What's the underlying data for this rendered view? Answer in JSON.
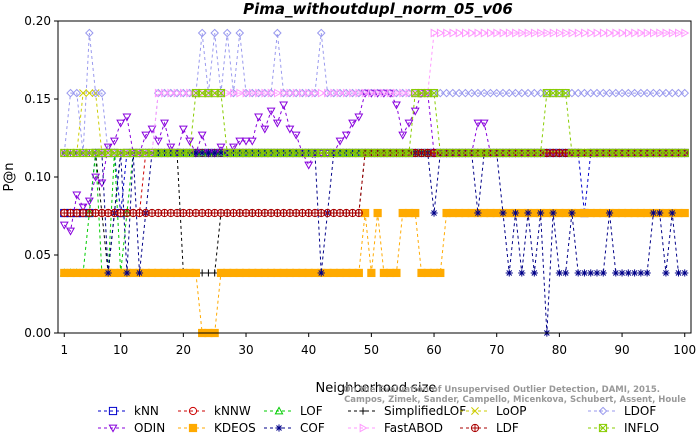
{
  "chart_data": {
    "type": "line",
    "title": "Pima_withoutdupl_norm_05_v06",
    "xlabel": "Neighborhood size",
    "ylabel": "P@n",
    "xlim": [
      0,
      101
    ],
    "ylim": [
      0,
      0.2
    ],
    "xticks": [
      1,
      10,
      20,
      30,
      40,
      50,
      60,
      70,
      80,
      90,
      100
    ],
    "yticks": [
      0.0,
      0.05,
      0.1,
      0.15,
      0.2
    ],
    "ytick_labels": [
      "0.00",
      "0.05",
      "0.10",
      "0.15",
      "0.20"
    ],
    "grid": false,
    "legend_position": "bottom",
    "watermark": {
      "line1": "Campos, Zimek, Sander, Campello, Micenkova, Schubert, Assent, Houle",
      "line2": "On the Evaluation of Unsupervised Outlier Detection, DAMI, 2015."
    },
    "series": [
      {
        "name": "kNN",
        "color": "#0000cc",
        "marker": "square",
        "segments": [
          [
            1,
            0.0769
          ],
          [
            2,
            0.0769
          ],
          [
            5,
            0.0769
          ],
          [
            6,
            0.1154
          ],
          [
            9,
            0.1154
          ],
          [
            10,
            0.0769
          ],
          [
            11,
            0.1154
          ],
          [
            83,
            0.1154
          ],
          [
            84,
            0.0769
          ],
          [
            85,
            0.1154
          ],
          [
            100,
            0.1154
          ]
        ]
      },
      {
        "name": "kNNW",
        "color": "#cc0000",
        "marker": "circle",
        "segments": [
          [
            1,
            0.0769
          ],
          [
            13,
            0.0769
          ],
          [
            14,
            0.1154
          ],
          [
            100,
            0.1154
          ]
        ]
      },
      {
        "name": "LOF",
        "color": "#00cc00",
        "marker": "triangle-up",
        "segments": [
          [
            1,
            0.0385
          ],
          [
            4,
            0.0385
          ],
          [
            5,
            0.0769
          ],
          [
            6,
            0.1154
          ],
          [
            7,
            0.0385
          ],
          [
            8,
            0.0385
          ],
          [
            9,
            0.1154
          ],
          [
            10,
            0.0385
          ],
          [
            11,
            0.0769
          ],
          [
            12,
            0.1154
          ],
          [
            100,
            0.1154
          ]
        ]
      },
      {
        "name": "SimplifiedLOF",
        "color": "#000000",
        "marker": "plus",
        "segments": [
          [
            1,
            0.1154
          ],
          [
            6,
            0.1154
          ],
          [
            7,
            0.0769
          ],
          [
            8,
            0.0385
          ],
          [
            9,
            0.0769
          ],
          [
            10,
            0.1154
          ],
          [
            19,
            0.1154
          ],
          [
            20,
            0.0385
          ],
          [
            25,
            0.0385
          ],
          [
            26,
            0.0769
          ],
          [
            47,
            0.0769
          ],
          [
            48,
            0.0769
          ],
          [
            49,
            0.1154
          ],
          [
            100,
            0.1154
          ]
        ]
      },
      {
        "name": "LoOP",
        "color": "#cccc00",
        "marker": "x",
        "segments": [
          [
            1,
            0.1154
          ],
          [
            3,
            0.1154
          ],
          [
            4,
            0.1538
          ],
          [
            6,
            0.1538
          ],
          [
            7,
            0.1154
          ],
          [
            100,
            0.1154
          ]
        ]
      },
      {
        "name": "LDOF",
        "color": "#9999ee",
        "marker": "diamond",
        "segments": [
          [
            1,
            0.1154
          ],
          [
            2,
            0.1538
          ],
          [
            3,
            0.1538
          ],
          [
            4,
            0.1154
          ],
          [
            5,
            0.1923
          ],
          [
            6,
            0.1538
          ],
          [
            7,
            0.1538
          ],
          [
            8,
            0.1154
          ],
          [
            9,
            0.1154
          ],
          [
            10,
            0.1154
          ],
          [
            11,
            0.1154
          ],
          [
            12,
            0.1154
          ],
          [
            13,
            0.1154
          ],
          [
            14,
            0.1154
          ],
          [
            15,
            0.1154
          ],
          [
            16,
            0.1538
          ],
          [
            22,
            0.1538
          ],
          [
            23,
            0.1923
          ],
          [
            24,
            0.1538
          ],
          [
            25,
            0.1923
          ],
          [
            26,
            0.1538
          ],
          [
            27,
            0.1923
          ],
          [
            28,
            0.1538
          ],
          [
            29,
            0.1923
          ],
          [
            30,
            0.1538
          ],
          [
            34,
            0.1538
          ],
          [
            35,
            0.1923
          ],
          [
            36,
            0.1538
          ],
          [
            41,
            0.1538
          ],
          [
            42,
            0.1923
          ],
          [
            43,
            0.1538
          ],
          [
            100,
            0.1538
          ]
        ]
      },
      {
        "name": "ODIN",
        "color": "#8800dd",
        "marker": "triangle-down",
        "segments": [
          [
            1,
            0.0692
          ],
          [
            2,
            0.0654
          ],
          [
            3,
            0.0885
          ],
          [
            4,
            0.0808
          ],
          [
            5,
            0.0846
          ],
          [
            6,
            0.1
          ],
          [
            7,
            0.0962
          ],
          [
            8,
            0.1192
          ],
          [
            9,
            0.1231
          ],
          [
            10,
            0.1346
          ],
          [
            11,
            0.1385
          ],
          [
            12,
            0.1154
          ],
          [
            13,
            0.1154
          ],
          [
            14,
            0.1269
          ],
          [
            15,
            0.1308
          ],
          [
            16,
            0.1231
          ],
          [
            17,
            0.1346
          ],
          [
            18,
            0.1192
          ],
          [
            19,
            0.1154
          ],
          [
            20,
            0.1308
          ],
          [
            21,
            0.1231
          ],
          [
            22,
            0.1154
          ],
          [
            23,
            0.1269
          ],
          [
            24,
            0.1154
          ],
          [
            25,
            0.1154
          ],
          [
            26,
            0.1192
          ],
          [
            27,
            0.1154
          ],
          [
            28,
            0.1192
          ],
          [
            29,
            0.1231
          ],
          [
            30,
            0.1231
          ],
          [
            31,
            0.1231
          ],
          [
            32,
            0.1385
          ],
          [
            33,
            0.1308
          ],
          [
            34,
            0.1423
          ],
          [
            35,
            0.1346
          ],
          [
            36,
            0.1462
          ],
          [
            37,
            0.1308
          ],
          [
            38,
            0.1269
          ],
          [
            39,
            0.1154
          ],
          [
            40,
            0.1077
          ],
          [
            41,
            0.1154
          ],
          [
            42,
            0.1154
          ],
          [
            43,
            0.1154
          ],
          [
            44,
            0.1154
          ],
          [
            45,
            0.1231
          ],
          [
            46,
            0.1269
          ],
          [
            47,
            0.1346
          ],
          [
            48,
            0.1385
          ],
          [
            49,
            0.1538
          ],
          [
            50,
            0.1538
          ],
          [
            51,
            0.1538
          ],
          [
            52,
            0.1538
          ],
          [
            53,
            0.1538
          ],
          [
            54,
            0.1462
          ],
          [
            55,
            0.1269
          ],
          [
            56,
            0.1346
          ],
          [
            57,
            0.1423
          ],
          [
            58,
            0.1538
          ],
          [
            59,
            0.1538
          ],
          [
            60,
            0.1154
          ],
          [
            66,
            0.1154
          ],
          [
            67,
            0.1346
          ],
          [
            68,
            0.1346
          ],
          [
            69,
            0.1154
          ],
          [
            100,
            0.1154
          ]
        ]
      },
      {
        "name": "KDEOS",
        "color": "#ffaa00",
        "marker": "square-filled",
        "segments": [
          [
            1,
            0.0385
          ],
          [
            21,
            0.0385
          ],
          [
            22,
            0.0385
          ],
          [
            23,
            0.0
          ],
          [
            25,
            0.0
          ],
          [
            26,
            0.0385
          ],
          [
            48,
            0.0385
          ],
          [
            49,
            0.0769
          ],
          [
            50,
            0.0385
          ],
          [
            51,
            0.0769
          ],
          [
            52,
            0.0385
          ],
          [
            54,
            0.0385
          ],
          [
            55,
            0.0769
          ],
          [
            57,
            0.0769
          ],
          [
            58,
            0.0385
          ],
          [
            61,
            0.0385
          ],
          [
            62,
            0.0769
          ],
          [
            100,
            0.0769
          ]
        ]
      },
      {
        "name": "COF",
        "color": "#000088",
        "marker": "asterisk",
        "segments": [
          [
            1,
            0.1154
          ],
          [
            7,
            0.1154
          ],
          [
            8,
            0.0385
          ],
          [
            9,
            0.0769
          ],
          [
            10,
            0.1154
          ],
          [
            11,
            0.0385
          ],
          [
            12,
            0.1154
          ],
          [
            13,
            0.0385
          ],
          [
            14,
            0.0769
          ],
          [
            15,
            0.1154
          ],
          [
            41,
            0.1154
          ],
          [
            42,
            0.0385
          ],
          [
            43,
            0.0769
          ],
          [
            44,
            0.1154
          ],
          [
            59,
            0.1154
          ],
          [
            60,
            0.0769
          ],
          [
            61,
            0.1154
          ],
          [
            66,
            0.1154
          ],
          [
            67,
            0.0769
          ],
          [
            68,
            0.1154
          ],
          [
            70,
            0.1154
          ],
          [
            71,
            0.0769
          ],
          [
            72,
            0.0385
          ],
          [
            73,
            0.0769
          ],
          [
            74,
            0.0385
          ],
          [
            75,
            0.0769
          ],
          [
            76,
            0.0385
          ],
          [
            77,
            0.0769
          ],
          [
            78,
            0.0
          ],
          [
            79,
            0.0769
          ],
          [
            80,
            0.0385
          ],
          [
            81,
            0.0385
          ],
          [
            82,
            0.0769
          ],
          [
            83,
            0.0385
          ],
          [
            87,
            0.0385
          ],
          [
            88,
            0.0769
          ],
          [
            89,
            0.0385
          ],
          [
            94,
            0.0385
          ],
          [
            95,
            0.0769
          ],
          [
            96,
            0.0769
          ],
          [
            97,
            0.0385
          ],
          [
            98,
            0.0769
          ],
          [
            99,
            0.0385
          ],
          [
            100,
            0.0385
          ]
        ]
      },
      {
        "name": "FastABOD",
        "color": "#ff99ff",
        "marker": "triangle-right",
        "segments": [
          [
            1,
            0.1154
          ],
          [
            15,
            0.1154
          ],
          [
            16,
            0.1538
          ],
          [
            59,
            0.1538
          ],
          [
            60,
            0.1923
          ],
          [
            100,
            0.1923
          ]
        ]
      },
      {
        "name": "LDF",
        "color": "#aa0000",
        "marker": "circle-plus",
        "segments": [
          [
            1,
            0.0769
          ],
          [
            48,
            0.0769
          ],
          [
            49,
            0.1154
          ],
          [
            100,
            0.1154
          ]
        ]
      },
      {
        "name": "INFLO",
        "color": "#88cc00",
        "marker": "square-x",
        "segments": [
          [
            1,
            0.1154
          ],
          [
            21,
            0.1154
          ],
          [
            22,
            0.1538
          ],
          [
            26,
            0.1538
          ],
          [
            27,
            0.1154
          ],
          [
            56,
            0.1154
          ],
          [
            57,
            0.1538
          ],
          [
            60,
            0.1538
          ],
          [
            61,
            0.1154
          ],
          [
            77,
            0.1154
          ],
          [
            78,
            0.1538
          ],
          [
            81,
            0.1538
          ],
          [
            82,
            0.1154
          ],
          [
            100,
            0.1154
          ]
        ]
      }
    ]
  }
}
